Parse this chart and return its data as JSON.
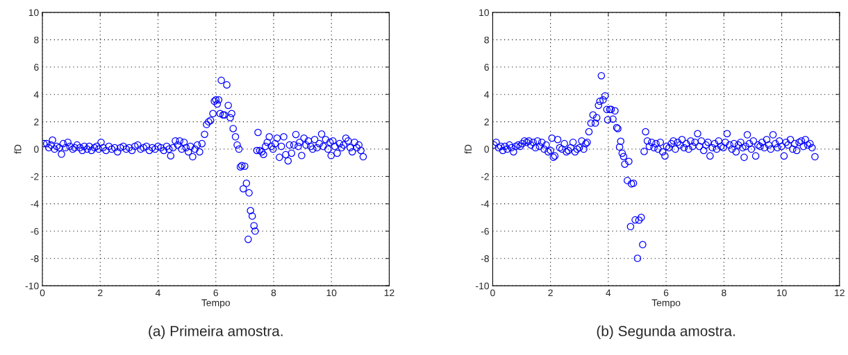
{
  "chart_data": [
    {
      "type": "scatter",
      "xlabel": "Tempo",
      "ylabel": "fD",
      "annotations": [
        "(a) Primeira amostra."
      ],
      "xlim": [
        0,
        12
      ],
      "ylim": [
        -10,
        10
      ],
      "xticks": [
        0,
        2,
        4,
        6,
        8,
        10,
        12
      ],
      "yticks": [
        -10,
        -8,
        -6,
        -4,
        -2,
        0,
        2,
        4,
        6,
        8,
        10
      ],
      "grid": true,
      "marker": "circle",
      "series": [
        {
          "color": "#0000ff",
          "x": [
            0.05,
            0.15,
            0.22,
            0.3,
            0.35,
            0.42,
            0.5,
            0.58,
            0.66,
            0.72,
            0.8,
            0.88,
            0.95,
            1.05,
            1.12,
            1.2,
            1.3,
            1.38,
            1.45,
            1.55,
            1.62,
            1.7,
            1.8,
            1.88,
            1.95,
            2.03,
            2.1,
            2.2,
            2.3,
            2.4,
            2.5,
            2.6,
            2.7,
            2.8,
            2.9,
            3.0,
            3.1,
            3.2,
            3.3,
            3.4,
            3.5,
            3.6,
            3.7,
            3.8,
            3.9,
            4.0,
            4.1,
            4.2,
            4.3,
            4.38,
            4.44,
            4.52,
            4.6,
            4.68,
            4.75,
            4.82,
            4.9,
            4.97,
            5.05,
            5.12,
            5.2,
            5.28,
            5.36,
            5.44,
            5.52,
            5.61,
            5.68,
            5.75,
            5.82,
            5.9,
            5.95,
            6.0,
            6.05,
            6.1,
            6.15,
            6.19,
            6.25,
            6.3,
            6.38,
            6.43,
            6.5,
            6.55,
            6.6,
            6.68,
            6.74,
            6.8,
            6.85,
            6.9,
            6.95,
            7.0,
            7.06,
            7.12,
            7.15,
            7.2,
            7.26,
            7.32,
            7.36,
            7.42,
            7.46,
            7.52,
            7.59,
            7.65,
            7.72,
            7.78,
            7.85,
            7.92,
            7.98,
            8.05,
            8.12,
            8.2,
            8.27,
            8.35,
            8.42,
            8.5,
            8.55,
            8.62,
            8.7,
            8.77,
            8.85,
            8.9,
            8.97,
            9.05,
            9.12,
            9.2,
            9.28,
            9.35,
            9.42,
            9.5,
            9.58,
            9.66,
            9.72,
            9.8,
            9.88,
            9.95,
            9.99,
            10.05,
            10.12,
            10.2,
            10.28,
            10.35,
            10.42,
            10.5,
            10.58,
            10.65,
            10.72,
            10.8,
            10.88,
            10.95,
            11.02,
            11.1
          ],
          "values": [
            0.4,
            0.4,
            0.1,
            0.3,
            0.66,
            0.0,
            0.2,
            0.1,
            -0.37,
            0.4,
            0.1,
            0.5,
            0.2,
            0.0,
            0.1,
            0.3,
            0.1,
            -0.1,
            0.2,
            0.0,
            0.2,
            -0.1,
            0.1,
            0.2,
            0.0,
            0.5,
            0.1,
            -0.1,
            0.2,
            0.0,
            0.1,
            -0.2,
            0.1,
            0.2,
            0.0,
            0.1,
            -0.1,
            0.2,
            0.3,
            0.0,
            0.1,
            0.2,
            -0.1,
            0.1,
            0.0,
            0.2,
            0.1,
            -0.1,
            0.2,
            0.0,
            -0.49,
            0.1,
            0.6,
            0.3,
            0.6,
            0.0,
            0.5,
            0.1,
            -0.2,
            0.2,
            -0.56,
            0.0,
            0.3,
            -0.2,
            0.4,
            1.08,
            1.8,
            2.0,
            2.1,
            2.6,
            3.5,
            3.6,
            3.3,
            3.6,
            2.6,
            5.03,
            2.5,
            2.5,
            4.7,
            3.2,
            2.3,
            2.6,
            1.5,
            0.9,
            0.3,
            0.0,
            -1.3,
            -1.2,
            -2.9,
            -1.25,
            -2.5,
            -6.6,
            -3.2,
            -4.5,
            -4.9,
            -5.6,
            -6.0,
            -0.1,
            1.22,
            -0.1,
            -0.2,
            -0.39,
            0.2,
            0.5,
            0.9,
            0.2,
            0.0,
            0.4,
            0.8,
            -0.6,
            0.2,
            0.9,
            -0.4,
            -0.86,
            0.3,
            -0.3,
            0.3,
            1.07,
            0.2,
            0.5,
            -0.47,
            0.8,
            0.3,
            0.6,
            0.2,
            0.0,
            0.7,
            0.1,
            0.4,
            1.1,
            0.2,
            0.7,
            0.0,
            0.5,
            -0.47,
            0.6,
            0.2,
            -0.3,
            0.4,
            0.1,
            0.3,
            0.8,
            0.6,
            0.1,
            -0.2,
            0.5,
            0.1,
            0.3,
            -0.1,
            -0.56
          ]
        }
      ]
    },
    {
      "type": "scatter",
      "xlabel": "Tempo",
      "ylabel": "fD",
      "annotations": [
        "(b) Segunda amostra."
      ],
      "xlim": [
        0,
        12
      ],
      "ylim": [
        -10,
        10
      ],
      "xticks": [
        0,
        2,
        4,
        6,
        8,
        10,
        12
      ],
      "yticks": [
        -10,
        -8,
        -6,
        -4,
        -2,
        0,
        2,
        4,
        6,
        8,
        10
      ],
      "grid": true,
      "marker": "circle",
      "series": [
        {
          "color": "#0000ff",
          "x": [
            0.05,
            0.12,
            0.2,
            0.28,
            0.35,
            0.42,
            0.5,
            0.58,
            0.65,
            0.72,
            0.8,
            0.88,
            0.95,
            1.02,
            1.1,
            1.18,
            1.25,
            1.32,
            1.4,
            1.48,
            1.55,
            1.62,
            1.7,
            1.78,
            1.85,
            1.92,
            2.0,
            2.05,
            2.1,
            2.15,
            2.25,
            2.32,
            2.4,
            2.48,
            2.55,
            2.62,
            2.7,
            2.78,
            2.85,
            2.92,
            3.0,
            3.08,
            3.15,
            3.22,
            3.27,
            3.33,
            3.4,
            3.47,
            3.55,
            3.6,
            3.66,
            3.71,
            3.76,
            3.82,
            3.89,
            3.95,
            3.98,
            4.05,
            4.1,
            4.16,
            4.23,
            4.29,
            4.33,
            4.39,
            4.43,
            4.48,
            4.53,
            4.57,
            4.66,
            4.71,
            4.77,
            4.8,
            4.87,
            4.93,
            5.01,
            5.06,
            5.14,
            5.19,
            5.24,
            5.29,
            5.35,
            5.42,
            5.5,
            5.58,
            5.65,
            5.72,
            5.8,
            5.88,
            5.96,
            6.02,
            6.1,
            6.18,
            6.25,
            6.32,
            6.4,
            6.48,
            6.55,
            6.62,
            6.7,
            6.78,
            6.85,
            6.92,
            7.0,
            7.09,
            7.15,
            7.22,
            7.3,
            7.38,
            7.45,
            7.52,
            7.6,
            7.68,
            7.75,
            7.82,
            7.9,
            7.98,
            8.05,
            8.11,
            8.2,
            8.28,
            8.35,
            8.42,
            8.5,
            8.58,
            8.65,
            8.7,
            8.75,
            8.81,
            8.88,
            8.95,
            9.02,
            9.1,
            9.18,
            9.25,
            9.32,
            9.4,
            9.48,
            9.55,
            9.62,
            9.7,
            9.78,
            9.85,
            9.92,
            10.0,
            10.08,
            10.15,
            10.22,
            10.3,
            10.38,
            10.45,
            10.52,
            10.6,
            10.68,
            10.75,
            10.82,
            10.9,
            10.98,
            11.05,
            11.15
          ],
          "values": [
            0.3,
            0.5,
            0.1,
            0.2,
            -0.1,
            0.2,
            0.0,
            0.3,
            0.1,
            -0.2,
            0.2,
            0.3,
            0.2,
            0.4,
            0.6,
            0.5,
            0.6,
            0.3,
            0.5,
            0.1,
            0.6,
            0.2,
            0.5,
            0.0,
            0.3,
            -0.2,
            -0.1,
            0.8,
            -0.6,
            -0.5,
            0.7,
            0.1,
            0.0,
            0.4,
            -0.2,
            -0.1,
            0.1,
            0.5,
            -0.2,
            0.0,
            0.1,
            0.6,
            0.0,
            0.4,
            0.5,
            1.27,
            1.9,
            2.5,
            1.9,
            2.3,
            3.2,
            3.5,
            5.37,
            3.6,
            3.9,
            2.9,
            2.15,
            2.9,
            2.9,
            2.2,
            2.8,
            1.57,
            1.5,
            0.15,
            0.57,
            -0.3,
            -0.54,
            -1.1,
            -2.3,
            -0.9,
            -5.67,
            -2.54,
            -2.5,
            -5.18,
            -7.99,
            -5.2,
            -5.0,
            -6.99,
            -0.17,
            1.27,
            0.6,
            0.2,
            0.5,
            0.1,
            0.4,
            0.0,
            0.5,
            -0.2,
            -0.5,
            0.2,
            0.1,
            0.4,
            0.6,
            0.0,
            0.5,
            0.3,
            0.7,
            0.1,
            0.4,
            0.0,
            0.6,
            0.2,
            0.5,
            1.13,
            0.2,
            0.6,
            -0.1,
            0.3,
            0.5,
            -0.5,
            0.1,
            0.4,
            0.0,
            0.6,
            0.2,
            0.1,
            0.5,
            1.13,
            0.3,
            0.0,
            0.4,
            -0.2,
            0.3,
            0.5,
            0.1,
            -0.6,
            0.2,
            1.05,
            0.4,
            0.0,
            0.6,
            -0.5,
            0.3,
            0.2,
            0.5,
            0.1,
            0.7,
            0.3,
            0.0,
            1.05,
            0.4,
            0.1,
            0.6,
            0.2,
            -0.5,
            0.5,
            0.3,
            0.7,
            0.0,
            0.4,
            -0.1,
            0.5,
            0.6,
            0.2,
            0.7,
            0.3,
            0.4,
            0.1,
            -0.56
          ]
        }
      ]
    }
  ]
}
